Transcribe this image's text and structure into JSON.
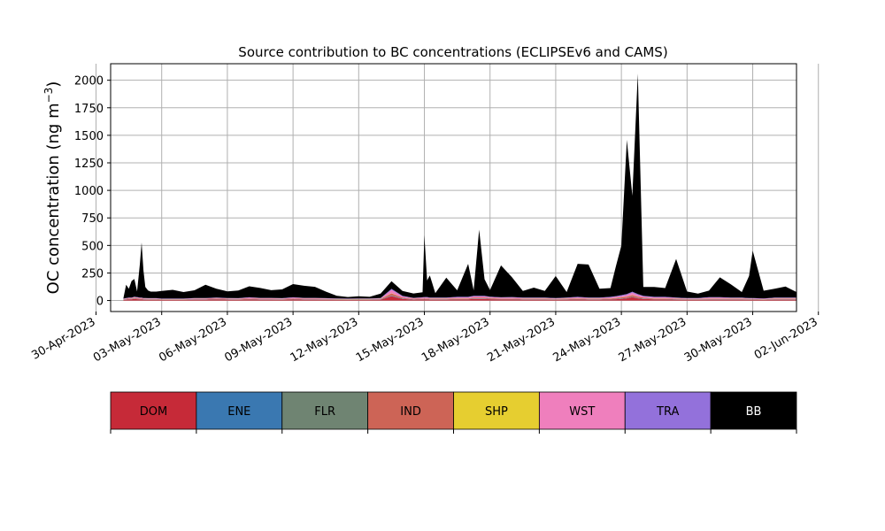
{
  "chart_data": {
    "type": "area",
    "stacked": true,
    "title": "Source contribution to BC concentrations (ECLIPSEv6 and CAMS)",
    "xlabel": "",
    "ylabel": "OC concentration (ng m",
    "ylabel_superscript": "−3",
    "ylabel_suffix": ")",
    "x_is_date": true,
    "xlim": [
      "2023-04-30T16:00",
      "2023-06-01T00:00"
    ],
    "ylim": [
      -100,
      2150
    ],
    "grid": true,
    "xticks": [
      {
        "date": "2023-04-30",
        "label": "30-Apr-2023"
      },
      {
        "date": "2023-05-03",
        "label": "03-May-2023"
      },
      {
        "date": "2023-05-06",
        "label": "06-May-2023"
      },
      {
        "date": "2023-05-09",
        "label": "09-May-2023"
      },
      {
        "date": "2023-05-12",
        "label": "12-May-2023"
      },
      {
        "date": "2023-05-15",
        "label": "15-May-2023"
      },
      {
        "date": "2023-05-18",
        "label": "18-May-2023"
      },
      {
        "date": "2023-05-21",
        "label": "21-May-2023"
      },
      {
        "date": "2023-05-24",
        "label": "24-May-2023"
      },
      {
        "date": "2023-05-27",
        "label": "27-May-2023"
      },
      {
        "date": "2023-05-30",
        "label": "30-May-2023"
      },
      {
        "date": "2023-06-02",
        "label": "02-Jun-2023"
      }
    ],
    "yticks": [
      0,
      250,
      500,
      750,
      1000,
      1250,
      1500,
      1750,
      2000
    ],
    "x": [
      "2023-05-01T06:00",
      "2023-05-01T09:00",
      "2023-05-01T12:00",
      "2023-05-01T15:00",
      "2023-05-01T18:00",
      "2023-05-01T21:00",
      "2023-05-02T00:00",
      "2023-05-02T02:00",
      "2023-05-02T04:00",
      "2023-05-02T06:00",
      "2023-05-02T09:00",
      "2023-05-02T12:00",
      "2023-05-02T18:00",
      "2023-05-03T00:00",
      "2023-05-03T12:00",
      "2023-05-04T00:00",
      "2023-05-04T12:00",
      "2023-05-05T00:00",
      "2023-05-05T12:00",
      "2023-05-06T00:00",
      "2023-05-06T12:00",
      "2023-05-07T00:00",
      "2023-05-07T12:00",
      "2023-05-08T00:00",
      "2023-05-08T12:00",
      "2023-05-09T00:00",
      "2023-05-09T12:00",
      "2023-05-10T00:00",
      "2023-05-10T12:00",
      "2023-05-11T00:00",
      "2023-05-11T12:00",
      "2023-05-12T00:00",
      "2023-05-12T12:00",
      "2023-05-13T00:00",
      "2023-05-13T12:00",
      "2023-05-14T00:00",
      "2023-05-14T12:00",
      "2023-05-14T22:00",
      "2023-05-15T00:00",
      "2023-05-15T03:00",
      "2023-05-15T06:00",
      "2023-05-15T12:00",
      "2023-05-16T00:00",
      "2023-05-16T12:00",
      "2023-05-17T00:00",
      "2023-05-17T06:00",
      "2023-05-17T12:00",
      "2023-05-17T18:00",
      "2023-05-18T00:00",
      "2023-05-18T12:00",
      "2023-05-19T00:00",
      "2023-05-19T12:00",
      "2023-05-20T00:00",
      "2023-05-20T12:00",
      "2023-05-21T00:00",
      "2023-05-21T12:00",
      "2023-05-22T00:00",
      "2023-05-22T12:00",
      "2023-05-23T00:00",
      "2023-05-23T12:00",
      "2023-05-23T18:00",
      "2023-05-24T00:00",
      "2023-05-24T06:00",
      "2023-05-24T12:00",
      "2023-05-24T18:00",
      "2023-05-25T00:00",
      "2023-05-25T12:00",
      "2023-05-26T00:00",
      "2023-05-26T12:00",
      "2023-05-27T00:00",
      "2023-05-27T12:00",
      "2023-05-28T00:00",
      "2023-05-28T12:00",
      "2023-05-29T00:00",
      "2023-05-29T12:00",
      "2023-05-29T20:00",
      "2023-05-30T00:00",
      "2023-05-30T12:00",
      "2023-05-31T00:00",
      "2023-05-31T12:00",
      "2023-06-01T00:00"
    ],
    "series": [
      {
        "name": "DOM",
        "color": "#c62a38",
        "values": [
          5,
          8,
          10,
          10,
          15,
          12,
          10,
          10,
          8,
          8,
          6,
          6,
          6,
          5,
          5,
          5,
          8,
          8,
          10,
          8,
          6,
          10,
          8,
          8,
          6,
          10,
          8,
          8,
          6,
          6,
          5,
          6,
          6,
          8,
          40,
          15,
          8,
          10,
          10,
          10,
          8,
          8,
          8,
          10,
          10,
          15,
          15,
          15,
          12,
          10,
          10,
          8,
          8,
          8,
          6,
          8,
          10,
          8,
          8,
          10,
          12,
          15,
          20,
          30,
          20,
          15,
          10,
          10,
          8,
          6,
          6,
          8,
          8,
          8,
          8,
          6,
          6,
          5,
          8,
          8,
          8
        ]
      },
      {
        "name": "ENE",
        "color": "#3a78b1",
        "values": [
          2,
          2,
          2,
          2,
          2,
          2,
          2,
          2,
          2,
          2,
          2,
          2,
          2,
          2,
          2,
          2,
          2,
          2,
          2,
          2,
          2,
          2,
          2,
          2,
          2,
          2,
          2,
          2,
          2,
          2,
          2,
          2,
          2,
          2,
          4,
          2,
          2,
          2,
          2,
          2,
          2,
          2,
          2,
          2,
          2,
          2,
          2,
          2,
          2,
          2,
          2,
          2,
          2,
          2,
          2,
          2,
          2,
          2,
          2,
          2,
          2,
          2,
          2,
          3,
          2,
          2,
          2,
          2,
          2,
          2,
          2,
          2,
          2,
          2,
          2,
          2,
          2,
          2,
          2,
          2,
          2
        ]
      },
      {
        "name": "FLR",
        "color": "#6f8472",
        "values": [
          1,
          1,
          1,
          1,
          1,
          1,
          1,
          1,
          1,
          1,
          1,
          1,
          1,
          1,
          1,
          1,
          1,
          1,
          1,
          1,
          1,
          1,
          1,
          1,
          1,
          1,
          1,
          1,
          1,
          1,
          1,
          1,
          1,
          1,
          1,
          1,
          1,
          1,
          1,
          1,
          1,
          1,
          1,
          1,
          1,
          1,
          1,
          1,
          1,
          1,
          1,
          1,
          1,
          1,
          1,
          1,
          1,
          1,
          1,
          1,
          1,
          1,
          1,
          1,
          1,
          1,
          1,
          1,
          1,
          1,
          1,
          1,
          1,
          1,
          1,
          1,
          1,
          1,
          1,
          1,
          1
        ]
      },
      {
        "name": "IND",
        "color": "#cd6456",
        "values": [
          3,
          4,
          5,
          5,
          6,
          6,
          5,
          5,
          4,
          4,
          4,
          4,
          4,
          3,
          3,
          3,
          4,
          4,
          5,
          4,
          4,
          5,
          4,
          4,
          4,
          5,
          4,
          4,
          4,
          3,
          3,
          3,
          3,
          4,
          20,
          8,
          4,
          5,
          5,
          5,
          5,
          5,
          5,
          6,
          6,
          8,
          8,
          8,
          6,
          5,
          5,
          5,
          5,
          5,
          4,
          5,
          6,
          5,
          5,
          6,
          8,
          10,
          12,
          15,
          12,
          8,
          6,
          6,
          5,
          4,
          4,
          5,
          5,
          5,
          5,
          4,
          4,
          3,
          5,
          5,
          5
        ]
      },
      {
        "name": "SHP",
        "color": "#e6ce30",
        "values": [
          1,
          1,
          1,
          1,
          1,
          1,
          1,
          1,
          1,
          1,
          1,
          1,
          1,
          1,
          1,
          1,
          1,
          1,
          1,
          1,
          1,
          1,
          1,
          1,
          1,
          1,
          1,
          1,
          1,
          1,
          1,
          1,
          1,
          1,
          1,
          1,
          1,
          1,
          1,
          1,
          1,
          1,
          1,
          1,
          1,
          1,
          1,
          1,
          1,
          1,
          1,
          1,
          1,
          1,
          1,
          1,
          1,
          1,
          1,
          1,
          1,
          1,
          1,
          1,
          1,
          1,
          1,
          1,
          1,
          1,
          1,
          1,
          1,
          1,
          1,
          1,
          1,
          1,
          1,
          1,
          1
        ]
      },
      {
        "name": "WST",
        "color": "#ef7fbd",
        "values": [
          3,
          4,
          5,
          5,
          6,
          6,
          5,
          5,
          4,
          4,
          4,
          4,
          4,
          3,
          3,
          3,
          4,
          4,
          5,
          4,
          4,
          6,
          5,
          5,
          4,
          6,
          5,
          5,
          4,
          3,
          3,
          3,
          3,
          4,
          30,
          10,
          5,
          6,
          8,
          8,
          6,
          6,
          6,
          8,
          8,
          10,
          10,
          10,
          8,
          6,
          8,
          6,
          6,
          6,
          5,
          6,
          8,
          6,
          6,
          8,
          10,
          12,
          15,
          20,
          15,
          10,
          8,
          8,
          6,
          5,
          5,
          8,
          8,
          6,
          6,
          5,
          5,
          4,
          6,
          6,
          6
        ]
      },
      {
        "name": "TRA",
        "color": "#9371db",
        "values": [
          2,
          3,
          3,
          3,
          4,
          4,
          3,
          3,
          3,
          3,
          3,
          3,
          3,
          2,
          2,
          2,
          3,
          3,
          3,
          3,
          3,
          4,
          3,
          3,
          3,
          4,
          3,
          3,
          3,
          2,
          2,
          2,
          2,
          3,
          10,
          5,
          3,
          4,
          5,
          5,
          4,
          4,
          4,
          5,
          5,
          6,
          6,
          6,
          5,
          4,
          5,
          4,
          4,
          4,
          3,
          4,
          5,
          4,
          4,
          5,
          6,
          8,
          8,
          10,
          8,
          6,
          5,
          5,
          4,
          3,
          3,
          5,
          5,
          4,
          4,
          3,
          3,
          3,
          4,
          4,
          4
        ]
      },
      {
        "name": "BB",
        "color": "#000000",
        "values": [
          3,
          120,
          80,
          150,
          160,
          50,
          300,
          500,
          250,
          100,
          70,
          60,
          60,
          70,
          80,
          60,
          70,
          120,
          80,
          60,
          70,
          100,
          90,
          70,
          80,
          120,
          110,
          100,
          60,
          25,
          15,
          20,
          15,
          40,
          70,
          45,
          40,
          45,
          560,
          150,
          200,
          40,
          180,
          60,
          300,
          50,
          600,
          150,
          60,
          290,
          180,
          60,
          90,
          60,
          200,
          50,
          300,
          300,
          80,
          80,
          270,
          450,
          1400,
          870,
          2000,
          80,
          90,
          80,
          350,
          60,
          40,
          60,
          180,
          120,
          50,
          200,
          430,
          70,
          80,
          100,
          50
        ]
      }
    ],
    "legend": {
      "placement": "below",
      "entries": [
        "DOM",
        "ENE",
        "FLR",
        "IND",
        "SHP",
        "WST",
        "TRA",
        "BB"
      ]
    }
  }
}
